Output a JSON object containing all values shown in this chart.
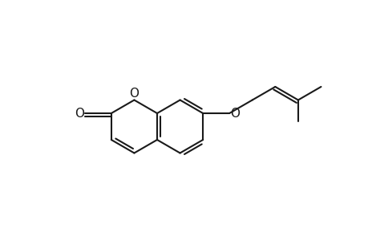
{
  "bg_color": "#ffffff",
  "line_color": "#1a1a1a",
  "line_width": 1.5,
  "fig_width": 4.6,
  "fig_height": 3.0,
  "dpi": 100,
  "fs": 11,
  "fs_stereo": 9
}
